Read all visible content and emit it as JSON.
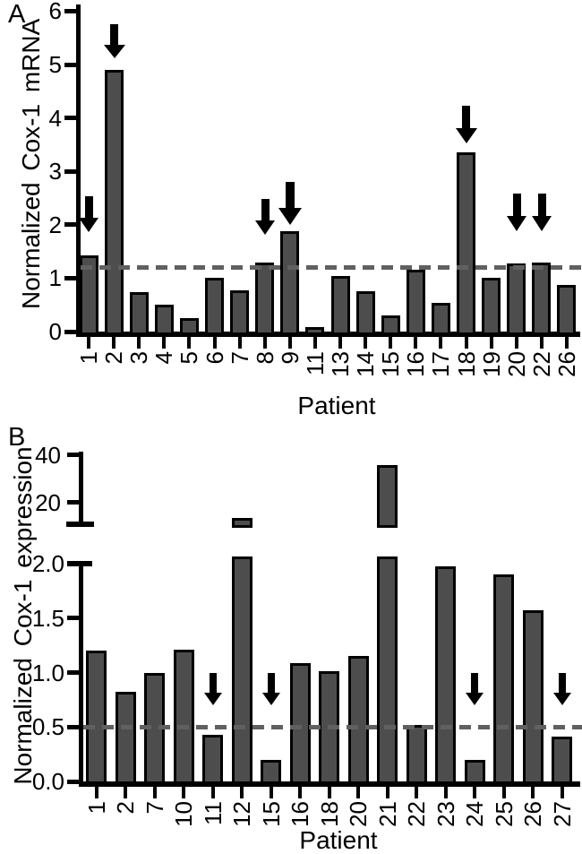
{
  "figure": {
    "panel_a_letter": "A",
    "panel_b_letter": "B",
    "colors": {
      "background": "#ffffff",
      "bar_fill": "#4d4d4d",
      "bar_border": "#000000",
      "axis": "#000000",
      "dashed_line": "#606060",
      "text": "#000000"
    }
  },
  "chart_data": [
    {
      "panel_letter": "A",
      "type": "bar",
      "title": "",
      "xlabel": "Patient",
      "ylabel": "Normalized Cox-1 mRNA",
      "categories": [
        "1",
        "2",
        "3",
        "4",
        "5",
        "6",
        "7",
        "8",
        "9",
        "11",
        "13",
        "14",
        "15",
        "16",
        "17",
        "18",
        "19",
        "20",
        "22",
        "26"
      ],
      "values": [
        1.43,
        4.9,
        0.74,
        0.5,
        0.25,
        1.01,
        0.77,
        1.29,
        1.88,
        0.08,
        1.04,
        0.76,
        0.31,
        1.15,
        0.54,
        3.35,
        1.01,
        1.28,
        1.3,
        0.87
      ],
      "ylim": [
        0,
        6
      ],
      "yticks": [
        "0",
        "1",
        "2",
        "3",
        "4",
        "5",
        "6"
      ],
      "dashed_threshold": 1.2,
      "arrow_marked_patients": [
        "1",
        "2",
        "8",
        "9",
        "18",
        "20",
        "22"
      ],
      "grid": false,
      "legend": null
    },
    {
      "panel_letter": "B",
      "type": "bar",
      "title": "",
      "xlabel": "Patient",
      "ylabel": "Normalized Cox-1 expression",
      "categories": [
        "1",
        "2",
        "7",
        "10",
        "11",
        "12",
        "15",
        "16",
        "18",
        "20",
        "21",
        "22",
        "23",
        "24",
        "25",
        "26",
        "27"
      ],
      "values": [
        1.2,
        0.82,
        1.0,
        1.21,
        0.43,
        13.5,
        0.2,
        1.09,
        1.01,
        1.15,
        36,
        0.52,
        1.98,
        0.2,
        1.9,
        1.57,
        0.41
      ],
      "y_axis_break": {
        "lower_range": [
          0,
          2.0
        ],
        "lower_ticks": [
          "0.0",
          "0.5",
          "1.0",
          "1.5",
          "2.0"
        ],
        "upper_ticks": [
          "20",
          "40"
        ],
        "bars_crossing_break": {
          "12": 13.5,
          "21": 36
        }
      },
      "dashed_threshold": 0.5,
      "arrow_marked_patients": [
        "11",
        "15",
        "24",
        "27"
      ],
      "grid": false,
      "legend": null
    }
  ]
}
